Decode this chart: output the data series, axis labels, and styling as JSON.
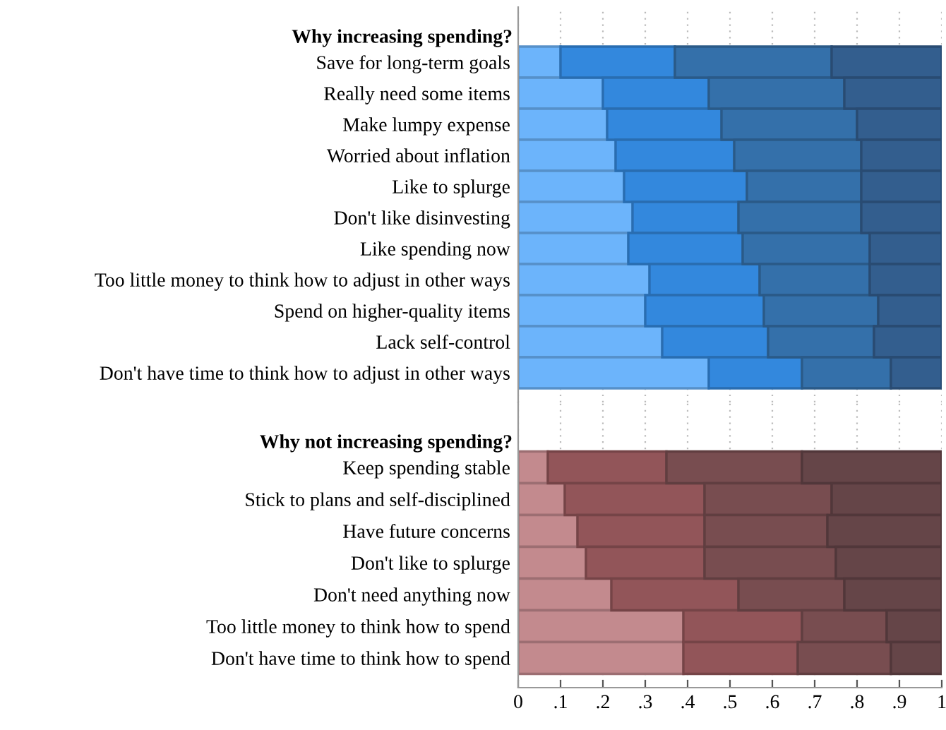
{
  "chart_data": [
    {
      "type": "bar",
      "orientation": "horizontal",
      "stacked": true,
      "title": "Why increasing spending?",
      "categories": [
        "Save for long-term goals",
        "Really need some items",
        "Make lumpy expense",
        "Worried about inflation",
        "Like to splurge",
        "Don't like disinvesting",
        "Like spending now",
        "Too little money to think how to adjust in other ways",
        "Spend on higher-quality items",
        "Lack self-control",
        "Don't have time to think how to adjust in other ways"
      ],
      "series": [
        {
          "color": "#6cb4fb",
          "values": [
            0.1,
            0.2,
            0.21,
            0.23,
            0.25,
            0.27,
            0.26,
            0.31,
            0.3,
            0.34,
            0.45
          ]
        },
        {
          "color": "#3388dd",
          "values": [
            0.27,
            0.25,
            0.27,
            0.28,
            0.29,
            0.25,
            0.27,
            0.26,
            0.28,
            0.25,
            0.22
          ]
        },
        {
          "color": "#3470aa",
          "values": [
            0.37,
            0.32,
            0.32,
            0.3,
            0.27,
            0.29,
            0.3,
            0.26,
            0.27,
            0.25,
            0.21
          ]
        },
        {
          "color": "#335e8e",
          "values": [
            0.26,
            0.23,
            0.2,
            0.19,
            0.19,
            0.19,
            0.17,
            0.17,
            0.15,
            0.16,
            0.12
          ]
        }
      ],
      "xlim": [
        0,
        1
      ],
      "grid": "x",
      "tick_labels": "y"
    },
    {
      "type": "bar",
      "orientation": "horizontal",
      "stacked": true,
      "title": "Why not increasing spending?",
      "categories": [
        "Keep spending stable",
        "Stick to plans and self-disciplined",
        "Have future concerns",
        "Don't like to splurge",
        "Don't need anything now",
        "Too little money to think how to spend",
        "Don't have time to think how to spend"
      ],
      "series": [
        {
          "color": "#c38a8e",
          "values": [
            0.07,
            0.11,
            0.14,
            0.16,
            0.22,
            0.39,
            0.39
          ]
        },
        {
          "color": "#925559",
          "values": [
            0.28,
            0.33,
            0.3,
            0.28,
            0.3,
            0.28,
            0.27
          ]
        },
        {
          "color": "#784d50",
          "values": [
            0.32,
            0.3,
            0.29,
            0.31,
            0.25,
            0.2,
            0.22
          ]
        },
        {
          "color": "#654548",
          "values": [
            0.33,
            0.26,
            0.27,
            0.25,
            0.23,
            0.13,
            0.12
          ]
        }
      ],
      "xlim": [
        0,
        1
      ],
      "grid": "x",
      "xticks": [
        0,
        {
          "value": 0.1,
          "label": ".1"
        },
        {
          "value": 0.2,
          "label": ".2"
        },
        {
          "value": 0.3,
          "label": ".3"
        },
        {
          "value": 0.4,
          "label": ".4"
        },
        {
          "value": 0.5,
          "label": ".5"
        },
        {
          "value": 0.6,
          "label": ".6"
        },
        {
          "value": 0.7,
          "label": ".7"
        },
        {
          "value": 0.8,
          "label": ".8"
        },
        {
          "value": 0.9,
          "label": ".9"
        },
        1
      ]
    }
  ]
}
